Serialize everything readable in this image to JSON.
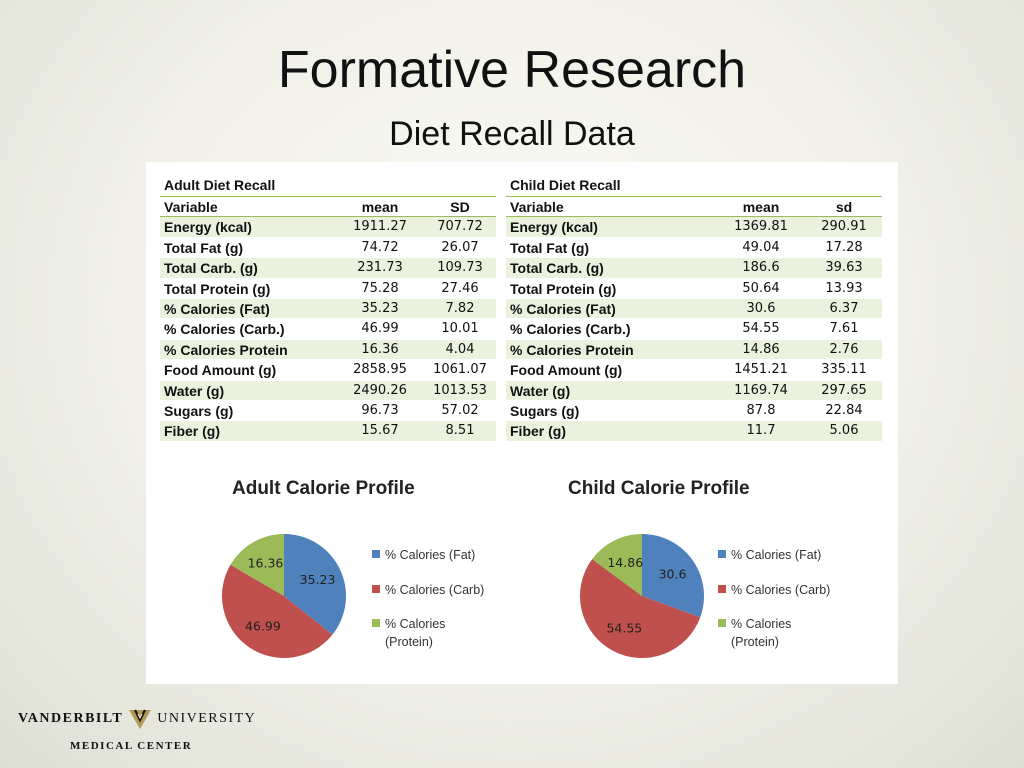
{
  "slide": {
    "title": "Formative Research",
    "subtitle": "Diet Recall Data"
  },
  "adult_table": {
    "title": "Adult Diet Recall",
    "headers": [
      "Variable",
      "mean",
      "SD"
    ],
    "rows": [
      [
        "Energy (kcal)",
        "1911.27",
        "707.72"
      ],
      [
        "Total Fat (g)",
        "74.72",
        "26.07"
      ],
      [
        "Total Carb. (g)",
        "231.73",
        "109.73"
      ],
      [
        "Total Protein (g)",
        "75.28",
        "27.46"
      ],
      [
        "% Calories (Fat)",
        "35.23",
        "7.82"
      ],
      [
        "% Calories (Carb.)",
        "46.99",
        "10.01"
      ],
      [
        "% Calories Protein",
        "16.36",
        "4.04"
      ],
      [
        "Food Amount (g)",
        "2858.95",
        "1061.07"
      ],
      [
        "Water (g)",
        "2490.26",
        "1013.53"
      ],
      [
        "Sugars (g)",
        "96.73",
        "57.02"
      ],
      [
        "Fiber (g)",
        "15.67",
        "8.51"
      ]
    ]
  },
  "child_table": {
    "title": "Child Diet Recall",
    "headers": [
      "Variable",
      "mean",
      "sd"
    ],
    "rows": [
      [
        "Energy (kcal)",
        "1369.81",
        "290.91"
      ],
      [
        "Total Fat (g)",
        "49.04",
        "17.28"
      ],
      [
        "Total Carb. (g)",
        "186.6",
        "39.63"
      ],
      [
        "Total Protein (g)",
        "50.64",
        "13.93"
      ],
      [
        "% Calories (Fat)",
        "30.6",
        "6.37"
      ],
      [
        "% Calories (Carb.)",
        "54.55",
        "7.61"
      ],
      [
        "% Calories Protein",
        "14.86",
        "2.76"
      ],
      [
        "Food Amount (g)",
        "1451.21",
        "335.11"
      ],
      [
        "Water (g)",
        "1169.74",
        "297.65"
      ],
      [
        "Sugars (g)",
        "87.8",
        "22.84"
      ],
      [
        "Fiber (g)",
        "11.7",
        "5.06"
      ]
    ]
  },
  "colors": {
    "fat": "#4f81bd",
    "carb": "#c0504d",
    "protein": "#9bbb59",
    "row_alt": "#eaf1dd",
    "rule": "#9bbb59"
  },
  "chart_data": [
    {
      "type": "pie",
      "title": "Adult Calorie Profile",
      "categories": [
        "% Calories (Fat)",
        "% Calories (Carb)",
        "% Calories (Protein)"
      ],
      "values": [
        35.23,
        46.99,
        16.36
      ],
      "data_labels": [
        "35.23",
        "46.99",
        "16.36"
      ],
      "legend": "right"
    },
    {
      "type": "pie",
      "title": "Child Calorie Profile",
      "categories": [
        "% Calories (Fat)",
        "% Calories (Carb)",
        "% Calories (Protein)"
      ],
      "values": [
        30.6,
        54.55,
        14.86
      ],
      "data_labels": [
        "30.6",
        "54.55",
        "14.86"
      ],
      "legend": "right"
    }
  ],
  "footer": {
    "logo_word1": "VANDERBILT",
    "logo_word2": "UNIVERSITY",
    "logo_line2": "MEDICAL CENTER"
  }
}
